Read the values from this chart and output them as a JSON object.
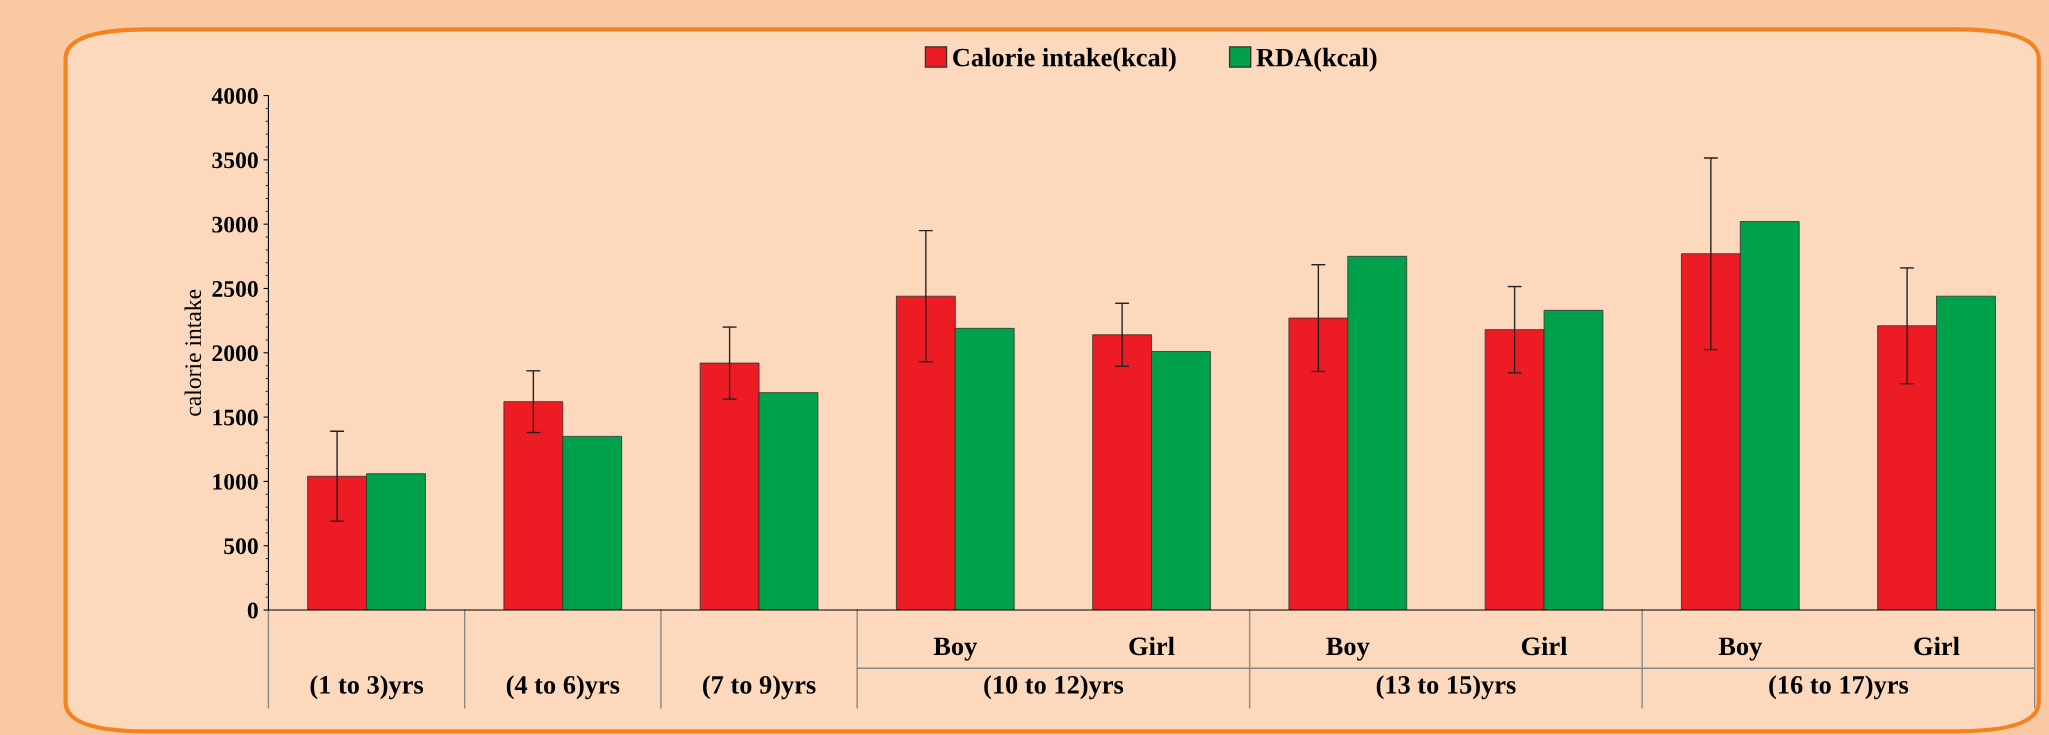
{
  "chart_data": {
    "type": "bar",
    "ylabel": "calorie intake",
    "categories": [
      "(1 to 3)yrs",
      "(4 to 6)yrs",
      "(7 to 9)yrs",
      "Boy",
      "Girl",
      "Boy",
      "Girl",
      "Boy",
      "Girl"
    ],
    "annotations": [
      "(10 to 12)yrs",
      "(13 to 15)yrs",
      "(16 to 17)yrs"
    ],
    "series": [
      {
        "name": "Calorie intake(kcal)",
        "color": "#ed1c24",
        "values": [
          1040,
          1620,
          1920,
          2440,
          2140,
          2270,
          2180,
          2770,
          2210
        ],
        "errors": [
          350,
          240,
          280,
          510,
          245,
          415,
          335,
          745,
          450
        ]
      },
      {
        "name": "RDA(kcal)",
        "color": "#00a14b",
        "values": [
          1060,
          1350,
          1690,
          2190,
          2010,
          2750,
          2330,
          3020,
          2440
        ]
      }
    ],
    "ylim": [
      0,
      4000
    ],
    "yticks": [
      0,
      500,
      1000,
      1500,
      2000,
      2500,
      3000,
      3500,
      4000
    ],
    "grid": false,
    "legend": "top"
  }
}
